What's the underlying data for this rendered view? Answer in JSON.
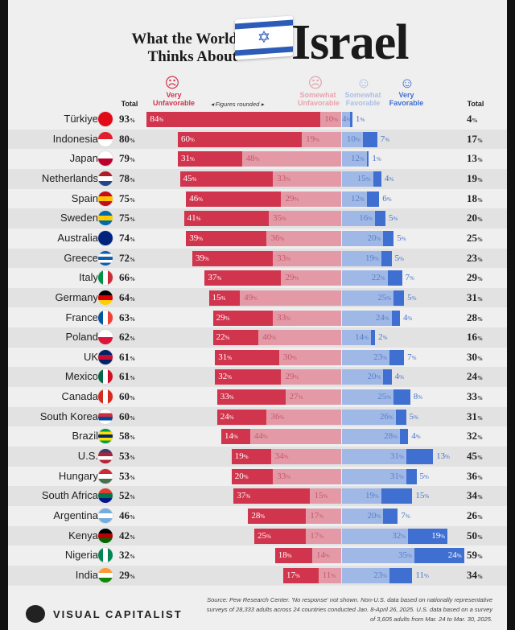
{
  "title": {
    "line1": "What the World",
    "line2": "Thinks About",
    "country": "Israel"
  },
  "legend": {
    "total_left": "Total",
    "very_unfavorable": "Very Unfavorable",
    "figures_rounded": "◂ Figures rounded ▸",
    "somewhat_unfavorable": "Somewhat Unfavorable",
    "somewhat_favorable": "Somewhat Favorable",
    "very_favorable": "Very Favorable",
    "total_right": "Total"
  },
  "colors": {
    "very_unfavorable": "#d0354d",
    "somewhat_unfavorable": "#e49aa6",
    "somewhat_favorable": "#9fb8e6",
    "very_favorable": "#3f6fd0"
  },
  "chart_data": {
    "type": "bar",
    "subtype": "diverging stacked bar",
    "unit": "%",
    "columns": [
      "Total unfavorable",
      "Very Unfavorable",
      "Somewhat Unfavorable",
      "Somewhat Favorable",
      "Very Favorable",
      "Total favorable"
    ],
    "rows": [
      {
        "country": "Türkiye",
        "total_unfav": 93,
        "very_unfav": 84,
        "somewhat_unfav": 10,
        "somewhat_fav": 4,
        "very_fav": 1,
        "total_fav": 4,
        "flag": [
          "#e30a17",
          "#e30a17"
        ]
      },
      {
        "country": "Indonesia",
        "total_unfav": 80,
        "very_unfav": 60,
        "somewhat_unfav": 19,
        "somewhat_fav": 10,
        "very_fav": 7,
        "total_fav": 17,
        "flag": [
          "#e0202c",
          "#ffffff"
        ]
      },
      {
        "country": "Japan",
        "total_unfav": 79,
        "very_unfav": 31,
        "somewhat_unfav": 48,
        "somewhat_fav": 12,
        "very_fav": 1,
        "total_fav": 13,
        "flag": [
          "#ffffff",
          "#bc002d"
        ]
      },
      {
        "country": "Netherlands",
        "total_unfav": 78,
        "very_unfav": 45,
        "somewhat_unfav": 33,
        "somewhat_fav": 15,
        "very_fav": 4,
        "total_fav": 19,
        "flag": [
          "#ae1c28",
          "#ffffff",
          "#21468b"
        ]
      },
      {
        "country": "Spain",
        "total_unfav": 75,
        "very_unfav": 46,
        "somewhat_unfav": 29,
        "somewhat_fav": 12,
        "very_fav": 6,
        "total_fav": 18,
        "flag": [
          "#c60b1e",
          "#ffc400",
          "#c60b1e"
        ]
      },
      {
        "country": "Sweden",
        "total_unfav": 75,
        "very_unfav": 41,
        "somewhat_unfav": 35,
        "somewhat_fav": 16,
        "very_fav": 5,
        "total_fav": 20,
        "flag": [
          "#006aa7",
          "#fecc00",
          "#006aa7"
        ]
      },
      {
        "country": "Australia",
        "total_unfav": 74,
        "very_unfav": 39,
        "somewhat_unfav": 36,
        "somewhat_fav": 20,
        "very_fav": 5,
        "total_fav": 25,
        "flag": [
          "#00247d",
          "#00247d"
        ]
      },
      {
        "country": "Greece",
        "total_unfav": 72,
        "very_unfav": 39,
        "somewhat_unfav": 33,
        "somewhat_fav": 19,
        "very_fav": 5,
        "total_fav": 23,
        "flag": [
          "#0d5eaf",
          "#ffffff",
          "#0d5eaf",
          "#ffffff",
          "#0d5eaf"
        ]
      },
      {
        "country": "Italy",
        "total_unfav": 66,
        "very_unfav": 37,
        "somewhat_unfav": 29,
        "somewhat_fav": 22,
        "very_fav": 7,
        "total_fav": 29,
        "flag": [
          "#009246",
          "#ffffff",
          "#ce2b37"
        ],
        "vertical": true
      },
      {
        "country": "Germany",
        "total_unfav": 64,
        "very_unfav": 15,
        "somewhat_unfav": 49,
        "somewhat_fav": 25,
        "very_fav": 5,
        "total_fav": 31,
        "flag": [
          "#000000",
          "#dd0000",
          "#ffce00"
        ]
      },
      {
        "country": "France",
        "total_unfav": 63,
        "very_unfav": 29,
        "somewhat_unfav": 33,
        "somewhat_fav": 24,
        "very_fav": 4,
        "total_fav": 28,
        "flag": [
          "#0055a4",
          "#ffffff",
          "#ef4135"
        ],
        "vertical": true
      },
      {
        "country": "Poland",
        "total_unfav": 62,
        "very_unfav": 22,
        "somewhat_unfav": 40,
        "somewhat_fav": 14,
        "very_fav": 2,
        "total_fav": 16,
        "flag": [
          "#ffffff",
          "#dc143c"
        ]
      },
      {
        "country": "UK",
        "total_unfav": 61,
        "very_unfav": 31,
        "somewhat_unfav": 30,
        "somewhat_fav": 23,
        "very_fav": 7,
        "total_fav": 30,
        "flag": [
          "#012169",
          "#c8102e",
          "#012169"
        ]
      },
      {
        "country": "Mexico",
        "total_unfav": 61,
        "very_unfav": 32,
        "somewhat_unfav": 29,
        "somewhat_fav": 20,
        "very_fav": 4,
        "total_fav": 24,
        "flag": [
          "#006847",
          "#ffffff",
          "#ce1126"
        ],
        "vertical": true
      },
      {
        "country": "Canada",
        "total_unfav": 60,
        "very_unfav": 33,
        "somewhat_unfav": 27,
        "somewhat_fav": 25,
        "very_fav": 8,
        "total_fav": 33,
        "flag": [
          "#d52b1e",
          "#ffffff",
          "#d52b1e"
        ],
        "vertical": true
      },
      {
        "country": "South Korea",
        "total_unfav": 60,
        "very_unfav": 24,
        "somewhat_unfav": 36,
        "somewhat_fav": 26,
        "very_fav": 5,
        "total_fav": 31,
        "flag": [
          "#ffffff",
          "#cd2e3a",
          "#0047a0",
          "#ffffff"
        ]
      },
      {
        "country": "Brazil",
        "total_unfav": 58,
        "very_unfav": 14,
        "somewhat_unfav": 44,
        "somewhat_fav": 28,
        "very_fav": 4,
        "total_fav": 32,
        "flag": [
          "#009c3b",
          "#ffdf00",
          "#002776",
          "#ffdf00",
          "#009c3b"
        ]
      },
      {
        "country": "U.S.",
        "total_unfav": 53,
        "very_unfav": 19,
        "somewhat_unfav": 34,
        "somewhat_fav": 31,
        "very_fav": 13,
        "total_fav": 45,
        "flag": [
          "#3c3b6e",
          "#b22234",
          "#ffffff",
          "#b22234"
        ]
      },
      {
        "country": "Hungary",
        "total_unfav": 53,
        "very_unfav": 20,
        "somewhat_unfav": 33,
        "somewhat_fav": 31,
        "very_fav": 5,
        "total_fav": 36,
        "flag": [
          "#ce2939",
          "#ffffff",
          "#477050"
        ]
      },
      {
        "country": "South Africa",
        "total_unfav": 52,
        "very_unfav": 37,
        "somewhat_unfav": 15,
        "somewhat_fav": 19,
        "very_fav": 15,
        "total_fav": 34,
        "flag": [
          "#e03c31",
          "#007749",
          "#001489"
        ]
      },
      {
        "country": "Argentina",
        "total_unfav": 46,
        "very_unfav": 28,
        "somewhat_unfav": 17,
        "somewhat_fav": 20,
        "very_fav": 7,
        "total_fav": 26,
        "flag": [
          "#74acdf",
          "#ffffff",
          "#74acdf"
        ]
      },
      {
        "country": "Kenya",
        "total_unfav": 42,
        "very_unfav": 25,
        "somewhat_unfav": 17,
        "somewhat_fav": 32,
        "very_fav": 19,
        "total_fav": 50,
        "flag": [
          "#000000",
          "#bb0000",
          "#006600"
        ]
      },
      {
        "country": "Nigeria",
        "total_unfav": 32,
        "very_unfav": 18,
        "somewhat_unfav": 14,
        "somewhat_fav": 35,
        "very_fav": 24,
        "total_fav": 59,
        "flag": [
          "#008751",
          "#ffffff",
          "#008751"
        ],
        "vertical": true
      },
      {
        "country": "India",
        "total_unfav": 29,
        "very_unfav": 17,
        "somewhat_unfav": 11,
        "somewhat_fav": 23,
        "very_fav": 11,
        "total_fav": 34,
        "flag": [
          "#ff9933",
          "#ffffff",
          "#138808"
        ]
      }
    ]
  },
  "footer": {
    "brand": "VISUAL CAPITALIST",
    "source": "Source: Pew Research Center. 'No response' not shown. Non-U.S. data based on nationally representative surveys of 28,333 adults across 24 countries conducted Jan. 8-April 26, 2025. U.S. data based on a survey of 3,605 adults from Mar. 24 to Mar. 30, 2025."
  }
}
